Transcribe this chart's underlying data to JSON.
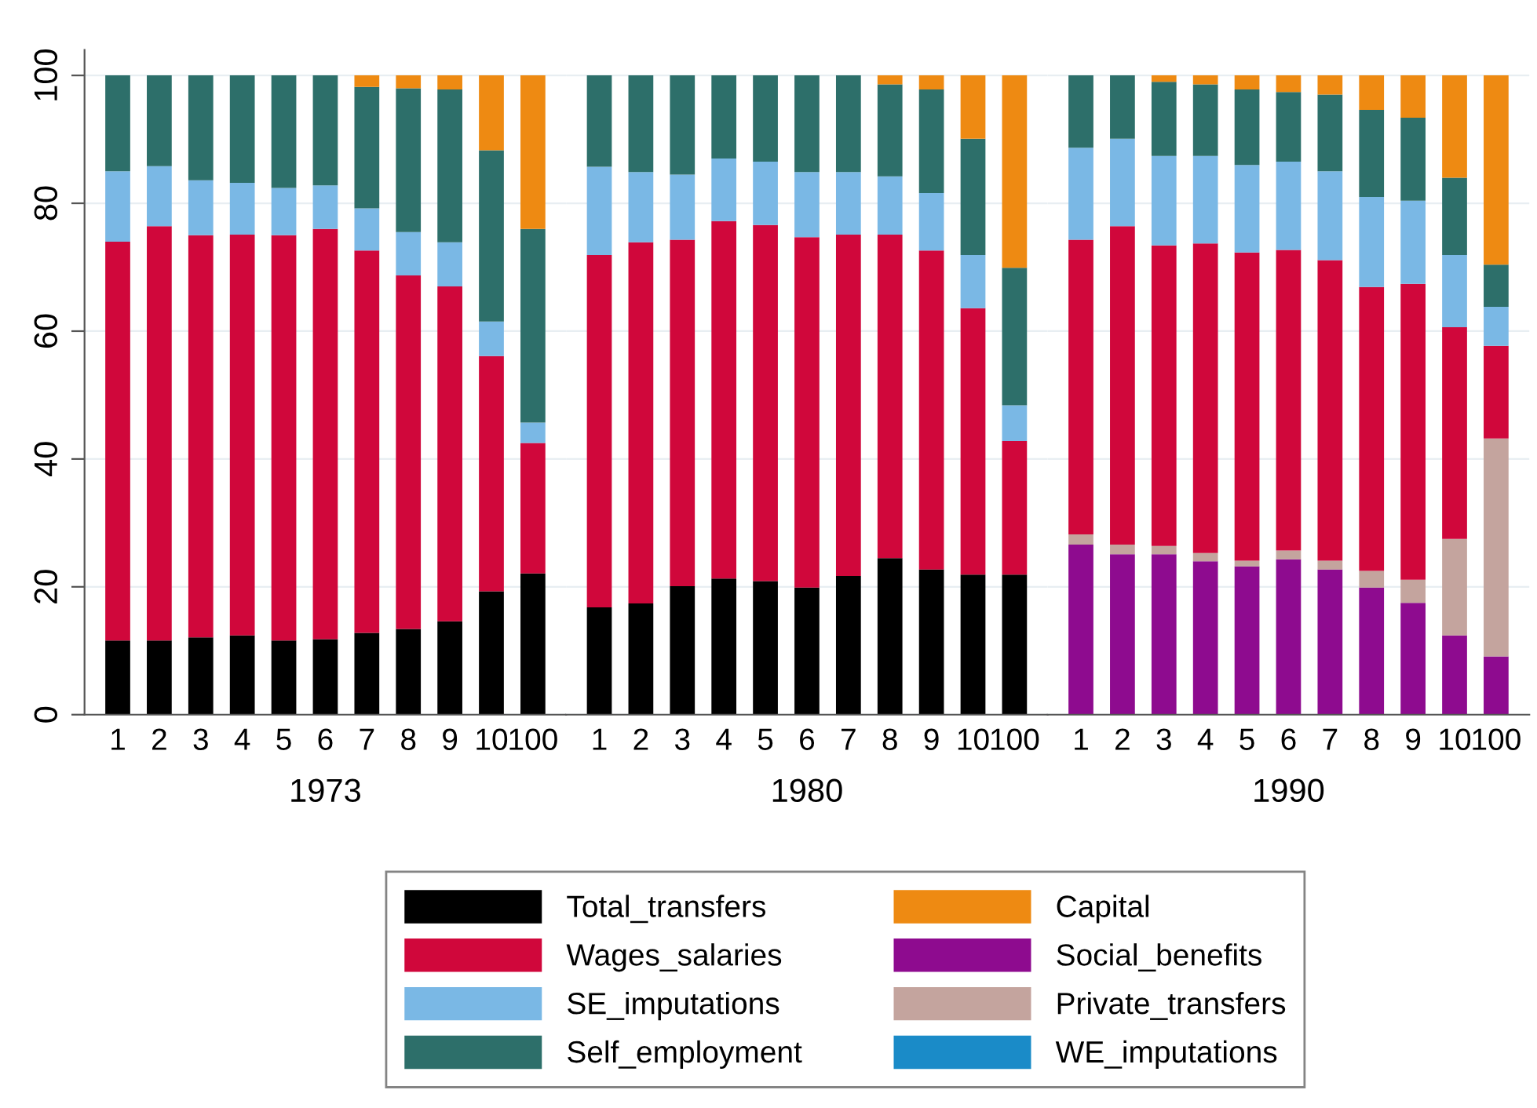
{
  "chart_data": [
    {
      "type": "bar",
      "stacked": true,
      "xlabel": "1973",
      "categories": [
        "1",
        "2",
        "3",
        "4",
        "5",
        "6",
        "7",
        "8",
        "9",
        "10",
        "100"
      ],
      "ylim": [
        0,
        104
      ],
      "yticks": [
        0,
        20,
        40,
        60,
        80,
        100
      ],
      "grid": "y",
      "legend": "bottom",
      "series": [
        {
          "name": "Total_transfers",
          "color": "#000000",
          "values": [
            11.6,
            11.6,
            12.1,
            12.4,
            11.6,
            11.8,
            12.8,
            13.4,
            14.6,
            19.3,
            22.1
          ]
        },
        {
          "name": "Wages_salaries",
          "color": "#d0073b",
          "values": [
            62.4,
            64.8,
            62.9,
            62.7,
            63.4,
            64.2,
            59.8,
            55.3,
            52.4,
            36.8,
            20.4
          ]
        },
        {
          "name": "SE_imputations",
          "color": "#7ab8e5",
          "values": [
            11,
            9.4,
            8.6,
            8.1,
            7.4,
            6.8,
            6.6,
            6.8,
            6.9,
            5.4,
            3.2
          ]
        },
        {
          "name": "Self_employment",
          "color": "#2d6f6a",
          "values": [
            15,
            14.2,
            16.4,
            16.8,
            17.6,
            17.2,
            19,
            22.5,
            23.9,
            26.8,
            30.3
          ]
        },
        {
          "name": "Capital",
          "color": "#ee8a12",
          "values": [
            0,
            0,
            0,
            0,
            0,
            0,
            1.8,
            2,
            2.2,
            11.7,
            24
          ]
        }
      ]
    },
    {
      "type": "bar",
      "stacked": true,
      "xlabel": "1980",
      "categories": [
        "1",
        "2",
        "3",
        "4",
        "5",
        "6",
        "7",
        "8",
        "9",
        "10",
        "100"
      ],
      "ylim": [
        0,
        104
      ],
      "yticks": [
        0,
        20,
        40,
        60,
        80,
        100
      ],
      "grid": "y",
      "tick_labels": "x",
      "legend": "bottom",
      "series": [
        {
          "name": "Total_transfers",
          "color": "#000000",
          "values": [
            16.8,
            17.4,
            20.1,
            21.3,
            20.9,
            19.9,
            21.7,
            24.5,
            22.7,
            21.9,
            21.9
          ]
        },
        {
          "name": "Wages_salaries",
          "color": "#d0073b",
          "values": [
            55.1,
            56.5,
            54.2,
            55.9,
            55.7,
            54.8,
            53.4,
            50.6,
            49.9,
            41.7,
            20.9
          ]
        },
        {
          "name": "SE_imputations",
          "color": "#7ab8e5",
          "values": [
            13.8,
            11,
            10.2,
            9.8,
            9.9,
            10.2,
            9.8,
            9.1,
            9,
            8.3,
            5.6
          ]
        },
        {
          "name": "Self_employment",
          "color": "#2d6f6a",
          "values": [
            14.3,
            15.1,
            15.5,
            13,
            13.5,
            15.1,
            15.1,
            14.4,
            16.2,
            18.2,
            21.5
          ]
        },
        {
          "name": "Capital",
          "color": "#ee8a12",
          "values": [
            0,
            0,
            0,
            0,
            0,
            0,
            0,
            1.4,
            2.2,
            9.9,
            30.1
          ]
        }
      ]
    },
    {
      "type": "bar",
      "stacked": true,
      "xlabel": "1990",
      "categories": [
        "1",
        "2",
        "3",
        "4",
        "5",
        "6",
        "7",
        "8",
        "9",
        "10",
        "100"
      ],
      "ylim": [
        0,
        104
      ],
      "yticks": [
        0,
        20,
        40,
        60,
        80,
        100
      ],
      "grid": "y",
      "tick_labels": "x",
      "legend": "bottom",
      "series": [
        {
          "name": "Social_benefits",
          "color": "#8e0b8f",
          "values": [
            26.6,
            25.1,
            25.1,
            24,
            23.2,
            24.3,
            22.7,
            19.9,
            17.5,
            12.4,
            9.1
          ]
        },
        {
          "name": "Private_transfers",
          "color": "#c4a49e",
          "values": [
            1.6,
            1.5,
            1.3,
            1.3,
            0.9,
            1.4,
            1.4,
            2.6,
            3.6,
            15.1,
            34.1
          ]
        },
        {
          "name": "Wages_salaries",
          "color": "#d0073b",
          "values": [
            46.1,
            49.8,
            47,
            48.4,
            48.2,
            47,
            47,
            44.4,
            46.3,
            33.1,
            14.5
          ]
        },
        {
          "name": "WE_imputations",
          "color": "#1a8bc8",
          "values": [
            null,
            null,
            null,
            null,
            null,
            null,
            null,
            null,
            null,
            null,
            null
          ]
        },
        {
          "name": "SE_imputations",
          "color": "#7ab8e5",
          "values": [
            14.4,
            13.7,
            14,
            13.7,
            13.7,
            13.8,
            13.9,
            14.1,
            13,
            11.3,
            6.1
          ]
        },
        {
          "name": "Self_employment",
          "color": "#2d6f6a",
          "values": [
            11.3,
            9.9,
            11.6,
            11.2,
            11.8,
            10.9,
            12,
            13.6,
            13,
            12.1,
            6.6
          ]
        },
        {
          "name": "Capital",
          "color": "#ee8a12",
          "values": [
            0,
            0,
            1,
            1.4,
            2.2,
            2.6,
            3,
            5.4,
            6.6,
            16,
            29.6
          ]
        }
      ]
    }
  ]
}
